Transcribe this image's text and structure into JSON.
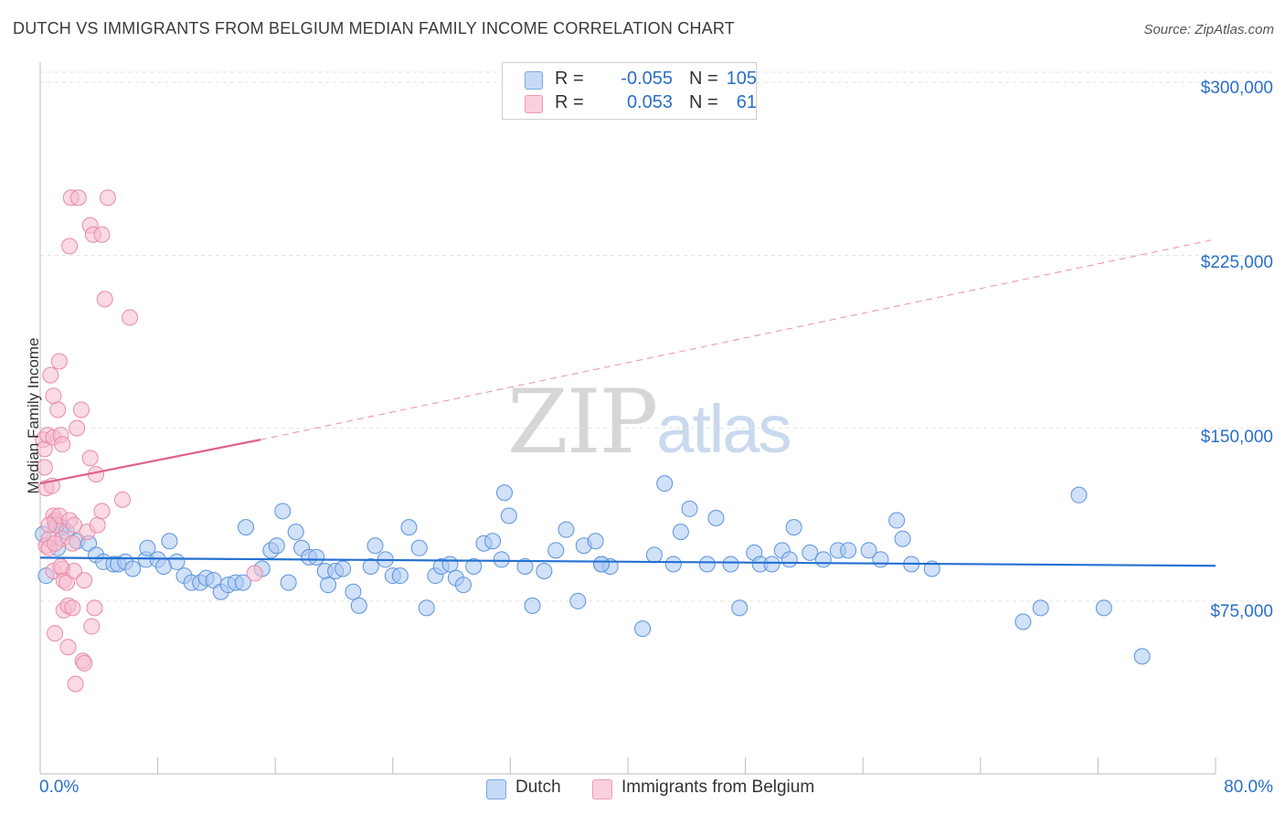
{
  "title": "DUTCH VS IMMIGRANTS FROM BELGIUM MEDIAN FAMILY INCOME CORRELATION CHART",
  "source": "Source: ZipAtlas.com",
  "watermark": {
    "part1": "ZIP",
    "part2": "atlas"
  },
  "legend": {
    "rows": [
      {
        "r_label": "R =",
        "r_value": "-0.055",
        "n_label": "N =",
        "n_value": "105",
        "color": "#a9c8f2"
      },
      {
        "r_label": "R =",
        "r_value": "0.053",
        "n_label": "N =",
        "n_value": "61",
        "color": "#f6bccd"
      }
    ]
  },
  "bottom_legend": [
    {
      "label": "Dutch",
      "color": "#a9c8f2"
    },
    {
      "label": "Immigrants from Belgium",
      "color": "#f6bccd"
    }
  ],
  "chart_data": {
    "type": "scatter",
    "title": "DUTCH VS IMMIGRANTS FROM BELGIUM MEDIAN FAMILY INCOME CORRELATION CHART",
    "xlabel": "",
    "ylabel": "Median Family Income",
    "xlim": [
      0,
      80
    ],
    "ylim": [
      0,
      312000
    ],
    "x_tick_labels": [
      "0.0%",
      "80.0%"
    ],
    "y_ticks": [
      75000,
      150000,
      225000,
      300000
    ],
    "y_tick_labels": [
      "$75,000",
      "$150,000",
      "$225,000",
      "$300,000"
    ],
    "grid": true,
    "legend_position": "top-center",
    "series": [
      {
        "name": "Dutch",
        "color": "#5b93dc",
        "fill": "#a9c8f2",
        "trend": {
          "x": [
            0,
            80
          ],
          "y": [
            93800,
            90300
          ],
          "style": "solid",
          "color": "#2470d1"
        },
        "points": [
          [
            0.2,
            104000
          ],
          [
            0.4,
            86000
          ],
          [
            1.0,
            109000
          ],
          [
            1.2,
            98000
          ],
          [
            1.5,
            107000
          ],
          [
            1.8,
            105000
          ],
          [
            2.5,
            101000
          ],
          [
            3.3,
            100000
          ],
          [
            3.8,
            95000
          ],
          [
            4.3,
            92000
          ],
          [
            5.0,
            91000
          ],
          [
            5.3,
            91000
          ],
          [
            5.8,
            92000
          ],
          [
            6.3,
            89000
          ],
          [
            7.2,
            93000
          ],
          [
            7.3,
            98000
          ],
          [
            8.0,
            93000
          ],
          [
            8.4,
            90000
          ],
          [
            8.8,
            101000
          ],
          [
            9.3,
            92000
          ],
          [
            9.8,
            86000
          ],
          [
            10.3,
            83000
          ],
          [
            10.9,
            83000
          ],
          [
            11.3,
            85000
          ],
          [
            11.8,
            84000
          ],
          [
            12.3,
            79000
          ],
          [
            12.8,
            82000
          ],
          [
            13.3,
            83000
          ],
          [
            13.8,
            83000
          ],
          [
            14.0,
            107000
          ],
          [
            15.1,
            89000
          ],
          [
            15.7,
            97000
          ],
          [
            16.1,
            99000
          ],
          [
            16.5,
            114000
          ],
          [
            16.9,
            83000
          ],
          [
            17.4,
            105000
          ],
          [
            17.8,
            98000
          ],
          [
            18.3,
            94000
          ],
          [
            18.8,
            94000
          ],
          [
            19.4,
            88000
          ],
          [
            19.6,
            82000
          ],
          [
            20.1,
            88000
          ],
          [
            20.6,
            89000
          ],
          [
            21.3,
            79000
          ],
          [
            21.7,
            73000
          ],
          [
            22.5,
            90000
          ],
          [
            22.8,
            99000
          ],
          [
            23.5,
            93000
          ],
          [
            24.0,
            86000
          ],
          [
            24.5,
            86000
          ],
          [
            25.1,
            107000
          ],
          [
            25.8,
            98000
          ],
          [
            26.3,
            72000
          ],
          [
            26.9,
            86000
          ],
          [
            27.3,
            90000
          ],
          [
            27.9,
            91000
          ],
          [
            28.3,
            85000
          ],
          [
            28.8,
            82000
          ],
          [
            29.5,
            90000
          ],
          [
            30.2,
            100000
          ],
          [
            30.8,
            101000
          ],
          [
            31.4,
            93000
          ],
          [
            31.6,
            122000
          ],
          [
            31.9,
            112000
          ],
          [
            33.0,
            90000
          ],
          [
            33.5,
            73000
          ],
          [
            34.3,
            88000
          ],
          [
            35.1,
            97000
          ],
          [
            35.8,
            106000
          ],
          [
            36.6,
            75000
          ],
          [
            37.0,
            99000
          ],
          [
            37.8,
            101000
          ],
          [
            38.2,
            91000
          ],
          [
            38.8,
            90000
          ],
          [
            38.2,
            91000
          ],
          [
            41.0,
            63000
          ],
          [
            41.8,
            95000
          ],
          [
            42.5,
            126000
          ],
          [
            43.1,
            91000
          ],
          [
            43.6,
            105000
          ],
          [
            44.2,
            115000
          ],
          [
            45.4,
            91000
          ],
          [
            46.0,
            111000
          ],
          [
            47.0,
            91000
          ],
          [
            47.6,
            72000
          ],
          [
            48.6,
            96000
          ],
          [
            49.0,
            91000
          ],
          [
            49.8,
            91000
          ],
          [
            50.5,
            97000
          ],
          [
            51.0,
            93000
          ],
          [
            52.4,
            96000
          ],
          [
            53.3,
            93000
          ],
          [
            54.3,
            97000
          ],
          [
            55.0,
            97000
          ],
          [
            56.4,
            97000
          ],
          [
            57.2,
            93000
          ],
          [
            58.3,
            110000
          ],
          [
            58.7,
            102000
          ],
          [
            59.3,
            91000
          ],
          [
            60.7,
            89000
          ],
          [
            66.9,
            66000
          ],
          [
            68.1,
            72000
          ],
          [
            70.7,
            121000
          ],
          [
            72.4,
            72000
          ],
          [
            75.0,
            51000
          ],
          [
            51.3,
            107000
          ]
        ]
      },
      {
        "name": "Immigrants from Belgium",
        "color": "#e98aa6",
        "fill": "#f6bccd",
        "trend": {
          "x": [
            0,
            15
          ],
          "y": [
            126000,
            145000
          ],
          "style": "solid",
          "color": "#e0608a",
          "extension": {
            "x": [
              15,
              80
            ],
            "y": [
              145000,
              232000
            ],
            "style": "dashed"
          }
        },
        "points": [
          [
            0.2,
            145000
          ],
          [
            0.3,
            141000
          ],
          [
            0.3,
            133000
          ],
          [
            0.4,
            124000
          ],
          [
            0.4,
            99000
          ],
          [
            0.5,
            147000
          ],
          [
            0.6,
            102000
          ],
          [
            0.6,
            98000
          ],
          [
            0.7,
            173000
          ],
          [
            0.8,
            125000
          ],
          [
            0.9,
            164000
          ],
          [
            0.9,
            146000
          ],
          [
            0.9,
            112000
          ],
          [
            0.9,
            88000
          ],
          [
            1.0,
            61000
          ],
          [
            1.0,
            110000
          ],
          [
            1.1,
            108000
          ],
          [
            1.2,
            158000
          ],
          [
            1.3,
            179000
          ],
          [
            1.3,
            112000
          ],
          [
            1.4,
            147000
          ],
          [
            1.5,
            143000
          ],
          [
            1.5,
            102000
          ],
          [
            1.5,
            89000
          ],
          [
            1.6,
            84000
          ],
          [
            1.6,
            71000
          ],
          [
            1.8,
            83000
          ],
          [
            1.9,
            55000
          ],
          [
            1.9,
            73000
          ],
          [
            2.0,
            229000
          ],
          [
            2.0,
            110000
          ],
          [
            2.1,
            250000
          ],
          [
            2.2,
            72000
          ],
          [
            2.3,
            88000
          ],
          [
            2.3,
            108000
          ],
          [
            2.4,
            39000
          ],
          [
            2.5,
            150000
          ],
          [
            2.6,
            250000
          ],
          [
            2.8,
            158000
          ],
          [
            2.9,
            49000
          ],
          [
            3.0,
            48000
          ],
          [
            3.2,
            105000
          ],
          [
            3.4,
            137000
          ],
          [
            3.4,
            238000
          ],
          [
            3.5,
            64000
          ],
          [
            3.6,
            234000
          ],
          [
            3.7,
            72000
          ],
          [
            3.8,
            130000
          ],
          [
            3.9,
            108000
          ],
          [
            4.2,
            234000
          ],
          [
            4.2,
            114000
          ],
          [
            4.4,
            206000
          ],
          [
            4.6,
            250000
          ],
          [
            5.6,
            119000
          ],
          [
            6.1,
            198000
          ],
          [
            14.6,
            87000
          ],
          [
            2.2,
            100000
          ],
          [
            1.0,
            100000
          ],
          [
            3.0,
            84000
          ],
          [
            0.6,
            108000
          ],
          [
            1.4,
            90000
          ]
        ]
      }
    ]
  }
}
